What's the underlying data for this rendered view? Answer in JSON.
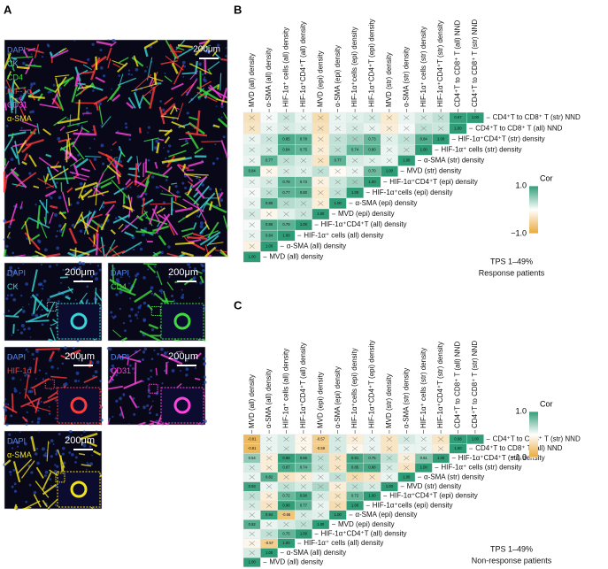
{
  "panel_a": {
    "label": "A",
    "main": {
      "channels": [
        {
          "name": "DAPI",
          "color": "#4f86e8"
        },
        {
          "name": "CK",
          "color": "#38d6d6"
        },
        {
          "name": "CD4",
          "color": "#3fdc3f"
        },
        {
          "name": "HIF-1α",
          "color": "#ff3b3b"
        },
        {
          "name": "CD31",
          "color": "#ff44dd"
        },
        {
          "name": "α-SMA",
          "color": "#f2e21c"
        }
      ],
      "scale": "200μm"
    },
    "insets": [
      {
        "channels": [
          {
            "name": "DAPI",
            "color": "#4f86e8"
          },
          {
            "name": "CK",
            "color": "#38d6d6"
          }
        ],
        "scale": "200μm"
      },
      {
        "channels": [
          {
            "name": "DAPI",
            "color": "#4f86e8"
          },
          {
            "name": "CD4",
            "color": "#3fdc3f"
          }
        ],
        "scale": "200μm"
      },
      {
        "channels": [
          {
            "name": "DAPI",
            "color": "#4f86e8"
          },
          {
            "name": "HIF-1α",
            "color": "#ff3b3b"
          }
        ],
        "scale": "200μm"
      },
      {
        "channels": [
          {
            "name": "DAPI",
            "color": "#4f86e8"
          },
          {
            "name": "CD31",
            "color": "#ff44dd"
          }
        ],
        "scale": "200μm"
      },
      {
        "channels": [
          {
            "name": "DAPI",
            "color": "#4f86e8"
          },
          {
            "name": "α-SMA",
            "color": "#f2e21c"
          }
        ],
        "scale": "200μm"
      }
    ]
  },
  "colors": {
    "high": "#2e9c76",
    "mid": "#ffffff",
    "low": "#e9a93a"
  },
  "variables": [
    "MVD (all) density",
    "α-SMA (all) density",
    "HIF-1α⁺ cells (all) density",
    "HIF-1α⁺CD4⁺T (all) density",
    "MVD (epi) density",
    "α-SMA (epi) density",
    "HIF-1α⁺cells (epi) density",
    "HIF-1α⁺CD4⁺T (epi) density",
    "MVD (str) density",
    "α-SMA (str) density",
    "HIF-1α⁺ cells (str) density",
    "HIF-1α⁺CD4⁺T (str) density",
    "CD4⁺T to CD8⁺ T (all) NND",
    "CD4⁺T to CD8⁺ T (str) NND"
  ],
  "panel_b": {
    "label": "B",
    "legend": {
      "title": "Cor",
      "ticks": [
        {
          "value": 1,
          "label": "1.0"
        },
        {
          "value": -1,
          "label": "−1.0"
        }
      ]
    },
    "note": [
      "TPS 1–49%",
      "Response patients"
    ],
    "rows": [
      {
        "values": [
          1
        ],
        "value_labels": [
          "1.00"
        ]
      },
      {
        "values": [
          -0.15,
          1
        ],
        "value_labels": [
          null,
          "1.00"
        ]
      },
      {
        "values": [
          0.1,
          0.84,
          1
        ],
        "value_labels": [
          null,
          "0.84",
          "1.00"
        ]
      },
      {
        "values": [
          0.05,
          0.86,
          0.79,
          1
        ],
        "value_labels": [
          null,
          "0.86",
          "0.79",
          "1.00"
        ]
      },
      {
        "values": [
          0.2,
          -0.1,
          0.15,
          0.25,
          1
        ],
        "value_labels": [
          null,
          null,
          null,
          null,
          "1.00"
        ]
      },
      {
        "values": [
          0.1,
          0.85,
          0.35,
          0.3,
          -0.2,
          1
        ],
        "value_labels": [
          null,
          "0.85",
          null,
          null,
          null,
          "1.00"
        ]
      },
      {
        "values": [
          0.05,
          0.3,
          0.77,
          0.8,
          -0.25,
          0.3,
          1
        ],
        "value_labels": [
          null,
          null,
          "0.77",
          "0.80",
          null,
          null,
          "1.00"
        ]
      },
      {
        "values": [
          0.1,
          0.2,
          0.78,
          0.73,
          -0.15,
          0.25,
          0.45,
          1
        ],
        "value_labels": [
          null,
          null,
          "0.78",
          "0.73",
          null,
          null,
          null,
          "1.00"
        ]
      },
      {
        "values": [
          0.84,
          -0.1,
          0.2,
          0.15,
          0.3,
          -0.05,
          0.1,
          0.7,
          1
        ],
        "value_labels": [
          "0.84",
          null,
          null,
          null,
          null,
          null,
          null,
          "0.70",
          "1.00"
        ]
      },
      {
        "values": [
          0.1,
          0.77,
          0.3,
          0.2,
          -0.3,
          0.77,
          0.2,
          0.15,
          0.1,
          1
        ],
        "value_labels": [
          null,
          "0.77",
          null,
          null,
          null,
          "0.77",
          null,
          null,
          null,
          "1.00"
        ]
      },
      {
        "values": [
          0.15,
          0.2,
          0.84,
          0.75,
          -0.2,
          0.3,
          0.74,
          0.8,
          0.1,
          0.25,
          1
        ],
        "value_labels": [
          null,
          null,
          "0.84",
          "0.75",
          null,
          null,
          "0.74",
          "0.80",
          null,
          null,
          "1.00"
        ]
      },
      {
        "values": [
          0.1,
          0.25,
          0.85,
          0.78,
          -0.25,
          0.3,
          0.45,
          0.73,
          0.15,
          0.3,
          0.84,
          1
        ],
        "value_labels": [
          null,
          null,
          "0.85",
          "0.78",
          null,
          null,
          null,
          "0.73",
          null,
          null,
          "0.84",
          "1.00"
        ]
      },
      {
        "values": [
          -0.3,
          0.1,
          0.2,
          0.15,
          -0.35,
          0.1,
          0.2,
          0.1,
          -0.2,
          0.05,
          0.3,
          0.25,
          1
        ],
        "value_labels": [
          null,
          null,
          null,
          null,
          null,
          null,
          null,
          null,
          null,
          null,
          null,
          null,
          "1.00"
        ]
      },
      {
        "values": [
          -0.35,
          0.05,
          0.25,
          0.1,
          -0.4,
          0.1,
          0.15,
          0.2,
          -0.25,
          0.1,
          0.2,
          0.3,
          0.97,
          1
        ],
        "value_labels": [
          null,
          null,
          null,
          null,
          null,
          null,
          null,
          null,
          null,
          null,
          null,
          null,
          "0.97",
          "1.00"
        ]
      }
    ]
  },
  "panel_c": {
    "label": "C",
    "legend": {
      "title": "Cor",
      "ticks": [
        {
          "value": 1,
          "label": "1.0"
        },
        {
          "value": -1,
          "label": "−1.0"
        }
      ]
    },
    "note": [
      "TPS 1–49%",
      "Non-response patients"
    ],
    "rows": [
      {
        "values": [
          1
        ],
        "value_labels": [
          "1.00"
        ]
      },
      {
        "values": [
          0.2,
          1
        ],
        "value_labels": [
          null,
          "1.00"
        ]
      },
      {
        "values": [
          -0.1,
          -0.57,
          1
        ],
        "value_labels": [
          null,
          "-0.57",
          "1.00"
        ]
      },
      {
        "values": [
          0.1,
          0.3,
          0.75,
          1
        ],
        "value_labels": [
          null,
          null,
          "0.75",
          "1.00"
        ]
      },
      {
        "values": [
          0.82,
          0.1,
          0.2,
          0.3,
          1
        ],
        "value_labels": [
          "0.82",
          null,
          null,
          null,
          "1.00"
        ]
      },
      {
        "values": [
          0.1,
          0.94,
          -0.66,
          0.2,
          0.15,
          1
        ],
        "value_labels": [
          null,
          "0.94",
          "-0.66",
          null,
          null,
          "1.00"
        ]
      },
      {
        "values": [
          0.2,
          -0.3,
          0.98,
          0.77,
          0.1,
          -0.4,
          1
        ],
        "value_labels": [
          null,
          null,
          "0.98",
          "0.77",
          null,
          null,
          "1.00"
        ]
      },
      {
        "values": [
          0.3,
          -0.2,
          0.72,
          0.9,
          0.2,
          -0.3,
          0.72,
          1
        ],
        "value_labels": [
          null,
          null,
          "0.72",
          "0.90",
          null,
          null,
          "0.72",
          "1.00"
        ]
      },
      {
        "values": [
          0.93,
          0.1,
          0.3,
          0.2,
          0.4,
          -0.2,
          0.3,
          0.2,
          1
        ],
        "value_labels": [
          "0.93",
          null,
          null,
          null,
          null,
          null,
          null,
          null,
          "1.00"
        ]
      },
      {
        "values": [
          0.1,
          0.82,
          -0.3,
          -0.2,
          0.1,
          0.3,
          -0.4,
          -0.3,
          0.1,
          1
        ],
        "value_labels": [
          null,
          "0.82",
          null,
          null,
          null,
          null,
          null,
          null,
          null,
          "1.00"
        ]
      },
      {
        "values": [
          0.2,
          -0.2,
          0.87,
          0.74,
          0.3,
          -0.3,
          0.85,
          0.88,
          0.2,
          -0.3,
          1
        ],
        "value_labels": [
          null,
          null,
          "0.87",
          "0.74",
          null,
          null,
          "0.85",
          "0.88",
          null,
          null,
          "1.00"
        ]
      },
      {
        "values": [
          0.54,
          -0.2,
          0.98,
          0.86,
          0.3,
          -0.3,
          0.91,
          0.75,
          0.3,
          -0.2,
          0.61,
          1
        ],
        "value_labels": [
          "0.54",
          null,
          "0.98",
          "0.86",
          null,
          null,
          "0.91",
          "0.75",
          null,
          null,
          "0.61",
          "1.00"
        ]
      },
      {
        "values": [
          -0.81,
          0.1,
          0.2,
          -0.1,
          -0.59,
          0.2,
          -0.1,
          0.1,
          -0.3,
          0.1,
          0.1,
          -0.2,
          1
        ],
        "value_labels": [
          "-0.81",
          null,
          null,
          null,
          "-0.59",
          null,
          null,
          null,
          null,
          null,
          null,
          null,
          "1.00"
        ]
      },
      {
        "values": [
          -0.81,
          0.1,
          0.2,
          -0.1,
          -0.57,
          0.2,
          -0.2,
          0.1,
          -0.3,
          0.2,
          0.1,
          -0.3,
          0.98,
          1
        ],
        "value_labels": [
          "-0.81",
          null,
          null,
          null,
          "-0.57",
          null,
          null,
          null,
          null,
          null,
          null,
          null,
          "0.98",
          "1.00"
        ]
      }
    ]
  }
}
